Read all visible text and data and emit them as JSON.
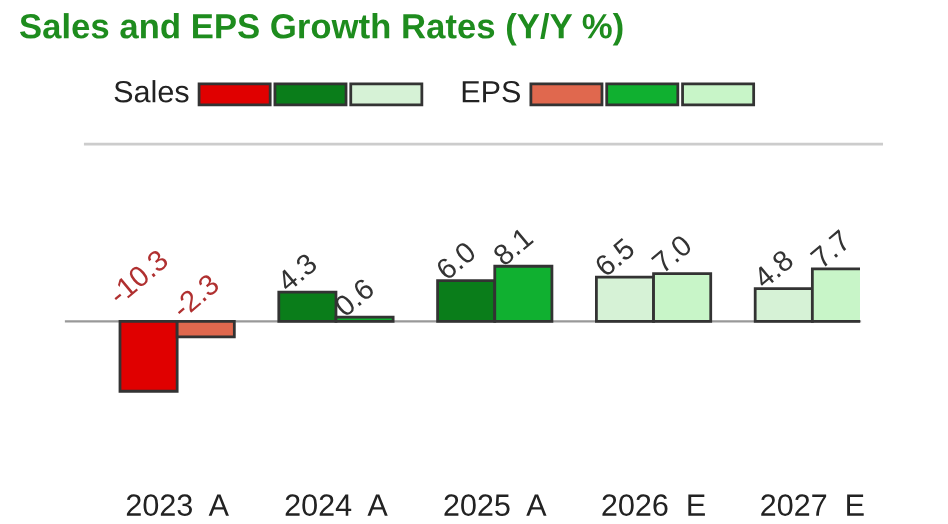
{
  "chart_data": {
    "type": "bar",
    "title": "Sales and EPS Growth Rates (Y/Y %)",
    "categories": [
      "2023  A",
      "2024  A",
      "2025  A",
      "2026  E",
      "2027  E"
    ],
    "series": [
      {
        "name": "Sales",
        "values": [
          -10.3,
          4.3,
          6.0,
          6.5,
          4.8
        ],
        "value_labels": [
          "-10.3",
          "4.3",
          "6.0",
          "6.5",
          "4.8"
        ],
        "colors": [
          "#e00000",
          "#0a7d1a",
          "#0a7d1a",
          "#d6f2d6",
          "#d6f2d6"
        ]
      },
      {
        "name": "EPS",
        "values": [
          -2.3,
          0.6,
          8.1,
          7.0,
          7.7
        ],
        "value_labels": [
          "-2.3",
          "0.6",
          "8.1",
          "7.0",
          "7.7"
        ],
        "colors": [
          "#e0684e",
          "#10b030",
          "#10b030",
          "#c8f5c8",
          "#c8f5c8"
        ]
      }
    ],
    "legend": "top",
    "grid": false
  }
}
